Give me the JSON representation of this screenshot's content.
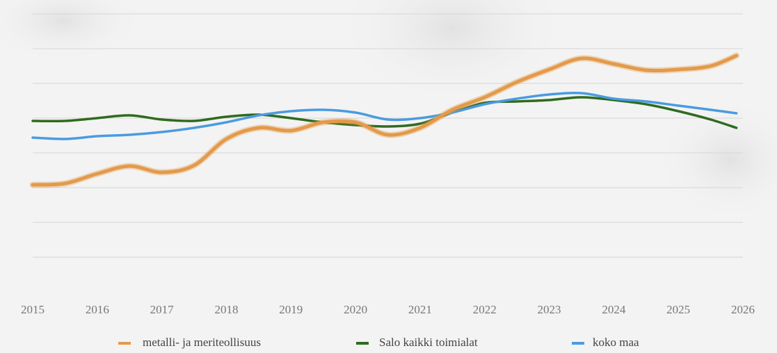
{
  "chart_data": {
    "type": "line",
    "x": [
      2015,
      2015.5,
      2016,
      2016.5,
      2017,
      2017.5,
      2018,
      2018.5,
      2019,
      2019.5,
      2020,
      2020.5,
      2021,
      2021.5,
      2022,
      2022.5,
      2023,
      2023.5,
      2024,
      2024.5,
      2025,
      2025.5,
      2025.9
    ],
    "series": [
      {
        "name": "metalli- ja meriteollisuus",
        "color": "#e39a4a",
        "values": [
          2.08,
          2.12,
          2.4,
          2.62,
          2.44,
          2.64,
          3.4,
          3.72,
          3.64,
          3.88,
          3.88,
          3.52,
          3.72,
          4.24,
          4.6,
          5.04,
          5.4,
          5.72,
          5.56,
          5.38,
          5.4,
          5.5,
          5.8
        ]
      },
      {
        "name": "Salo kaikki toimialat",
        "color": "#2e6b1f",
        "values": [
          3.92,
          3.92,
          4.0,
          4.08,
          3.96,
          3.92,
          4.04,
          4.1,
          4.0,
          3.88,
          3.8,
          3.76,
          3.84,
          4.16,
          4.44,
          4.48,
          4.52,
          4.6,
          4.52,
          4.4,
          4.2,
          3.96,
          3.72
        ]
      },
      {
        "name": "koko maa",
        "color": "#4a9be0",
        "values": [
          3.44,
          3.4,
          3.48,
          3.52,
          3.6,
          3.72,
          3.88,
          4.08,
          4.2,
          4.24,
          4.16,
          3.96,
          4.0,
          4.16,
          4.4,
          4.56,
          4.68,
          4.72,
          4.56,
          4.48,
          4.36,
          4.24,
          4.14
        ]
      }
    ],
    "xlim": [
      2015,
      2026
    ],
    "xticks": [
      2015,
      2016,
      2017,
      2018,
      2019,
      2020,
      2021,
      2022,
      2023,
      2024,
      2025,
      2026
    ],
    "ylim": [
      0,
      7.4
    ],
    "yticks": [
      0,
      1,
      2,
      3,
      4,
      5,
      6,
      7
    ],
    "grid": true,
    "legend": "bottom"
  }
}
